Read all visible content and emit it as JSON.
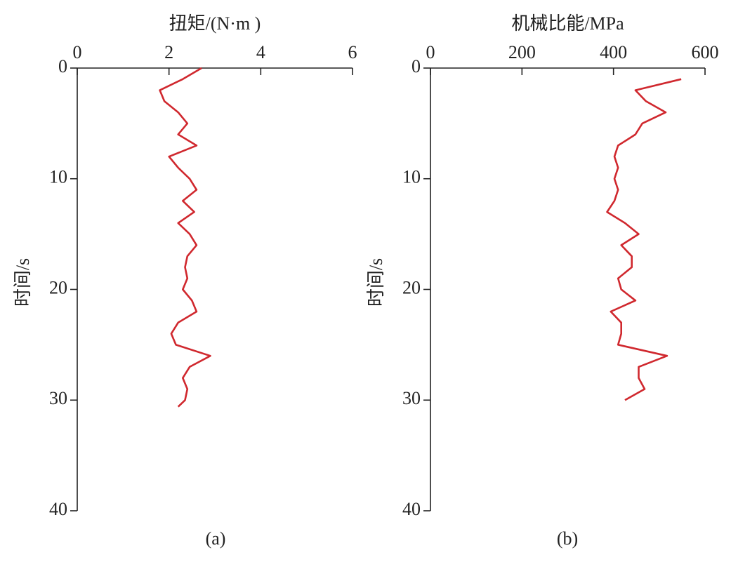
{
  "chart_data": [
    {
      "type": "line",
      "orientation": "horizontal",
      "value_label": "扭矩/(N·m )",
      "time_label": "时间/s",
      "caption": "(a)",
      "ylim": [
        0,
        6
      ],
      "yticks": [
        0,
        2,
        4,
        6
      ],
      "xlim": [
        0,
        40
      ],
      "xticks": [
        0,
        10,
        20,
        30,
        40
      ],
      "x": [
        0,
        1,
        2,
        3,
        4,
        5,
        6,
        7,
        8,
        9,
        10,
        11,
        12,
        13,
        14,
        15,
        16,
        17,
        18,
        19,
        20,
        21,
        22,
        23,
        24,
        25,
        26,
        27,
        28,
        29,
        30,
        30.6
      ],
      "series": [
        {
          "color": "#d0282e",
          "values": [
            2.71,
            2.3,
            1.8,
            1.9,
            2.2,
            2.4,
            2.2,
            2.6,
            2.0,
            2.2,
            2.45,
            2.6,
            2.3,
            2.55,
            2.2,
            2.45,
            2.6,
            2.4,
            2.35,
            2.4,
            2.3,
            2.5,
            2.6,
            2.2,
            2.05,
            2.15,
            2.9,
            2.45,
            2.3,
            2.4,
            2.35,
            2.2
          ]
        }
      ]
    },
    {
      "type": "line",
      "orientation": "horizontal",
      "value_label": "机械比能/MPa",
      "time_label": "时间/s",
      "caption": "(b)",
      "ylim": [
        0,
        600
      ],
      "yticks": [
        0,
        200,
        400,
        600
      ],
      "xlim": [
        0,
        40
      ],
      "xticks": [
        0,
        10,
        20,
        30,
        40
      ],
      "x": [
        1,
        2,
        3,
        4,
        5,
        6,
        7,
        8,
        9,
        10,
        11,
        12,
        13,
        14,
        15,
        16,
        17,
        18,
        19,
        20,
        21,
        22,
        23,
        24,
        25,
        26,
        27,
        28,
        29,
        30
      ],
      "series": [
        {
          "color": "#d0282e",
          "values": [
            548,
            448,
            471,
            514,
            463,
            448,
            410,
            402,
            410,
            402,
            410,
            402,
            386,
            425,
            455,
            417,
            440,
            440,
            410,
            417,
            448,
            394,
            417,
            417,
            410,
            517,
            455,
            455,
            468,
            425
          ]
        }
      ]
    }
  ]
}
